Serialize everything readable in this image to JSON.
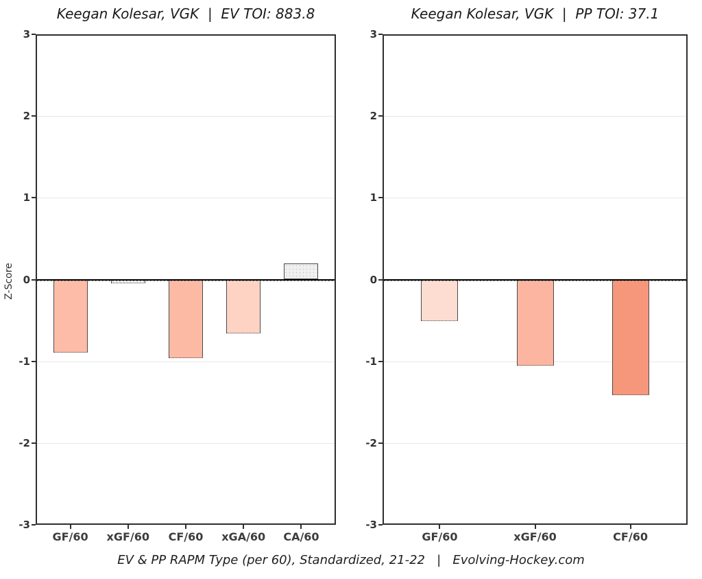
{
  "caption": {
    "text": "EV & PP RAPM Type (per 60), Standardized, 21-22   |   Evolving-Hockey.com"
  },
  "chart_data": [
    {
      "type": "bar",
      "title": "Keegan Kolesar, VGK  |  EV TOI: 883.8",
      "xlabel": "",
      "ylabel": "Z-Score",
      "ylim": [
        -3,
        3
      ],
      "yticks": [
        3,
        2,
        1,
        0,
        -1,
        -2,
        -3
      ],
      "grid": true,
      "legend": "none",
      "categories": [
        "GF/60",
        "xGF/60",
        "CF/60",
        "xGA/60",
        "CA/60"
      ],
      "values": [
        -0.89,
        -0.05,
        -0.96,
        -0.66,
        0.2
      ],
      "bar_colors": [
        "#fcbca7",
        "#fbfbfb",
        "#fcbaa5",
        "#fed3c4",
        "#f0f0f0"
      ],
      "bar_textured": [
        false,
        true,
        false,
        false,
        true
      ]
    },
    {
      "type": "bar",
      "title": "Keegan Kolesar, VGK  |  PP TOI: 37.1",
      "xlabel": "",
      "ylabel": "",
      "ylim": [
        -3,
        3
      ],
      "yticks": [
        3,
        2,
        1,
        0,
        -1,
        -2,
        -3
      ],
      "grid": true,
      "legend": "none",
      "categories": [
        "GF/60",
        "xGF/60",
        "CF/60"
      ],
      "values": [
        -0.51,
        -1.05,
        -1.41
      ],
      "bar_colors": [
        "#fdddd1",
        "#fcb5a0",
        "#f6977c"
      ],
      "bar_textured": [
        false,
        false,
        false
      ]
    }
  ],
  "style": {
    "background": "#ffffff",
    "bar_border": "#4a4a4a",
    "grid_color": "#e7e7e7",
    "zero_line_color": "#000000",
    "panel_border": "#2e2e2e",
    "tick_label_color": "#333333",
    "category_label_color": "#3d3d3d",
    "title_color": "#1a1a1a",
    "caption_color": "#1f1f1f"
  }
}
